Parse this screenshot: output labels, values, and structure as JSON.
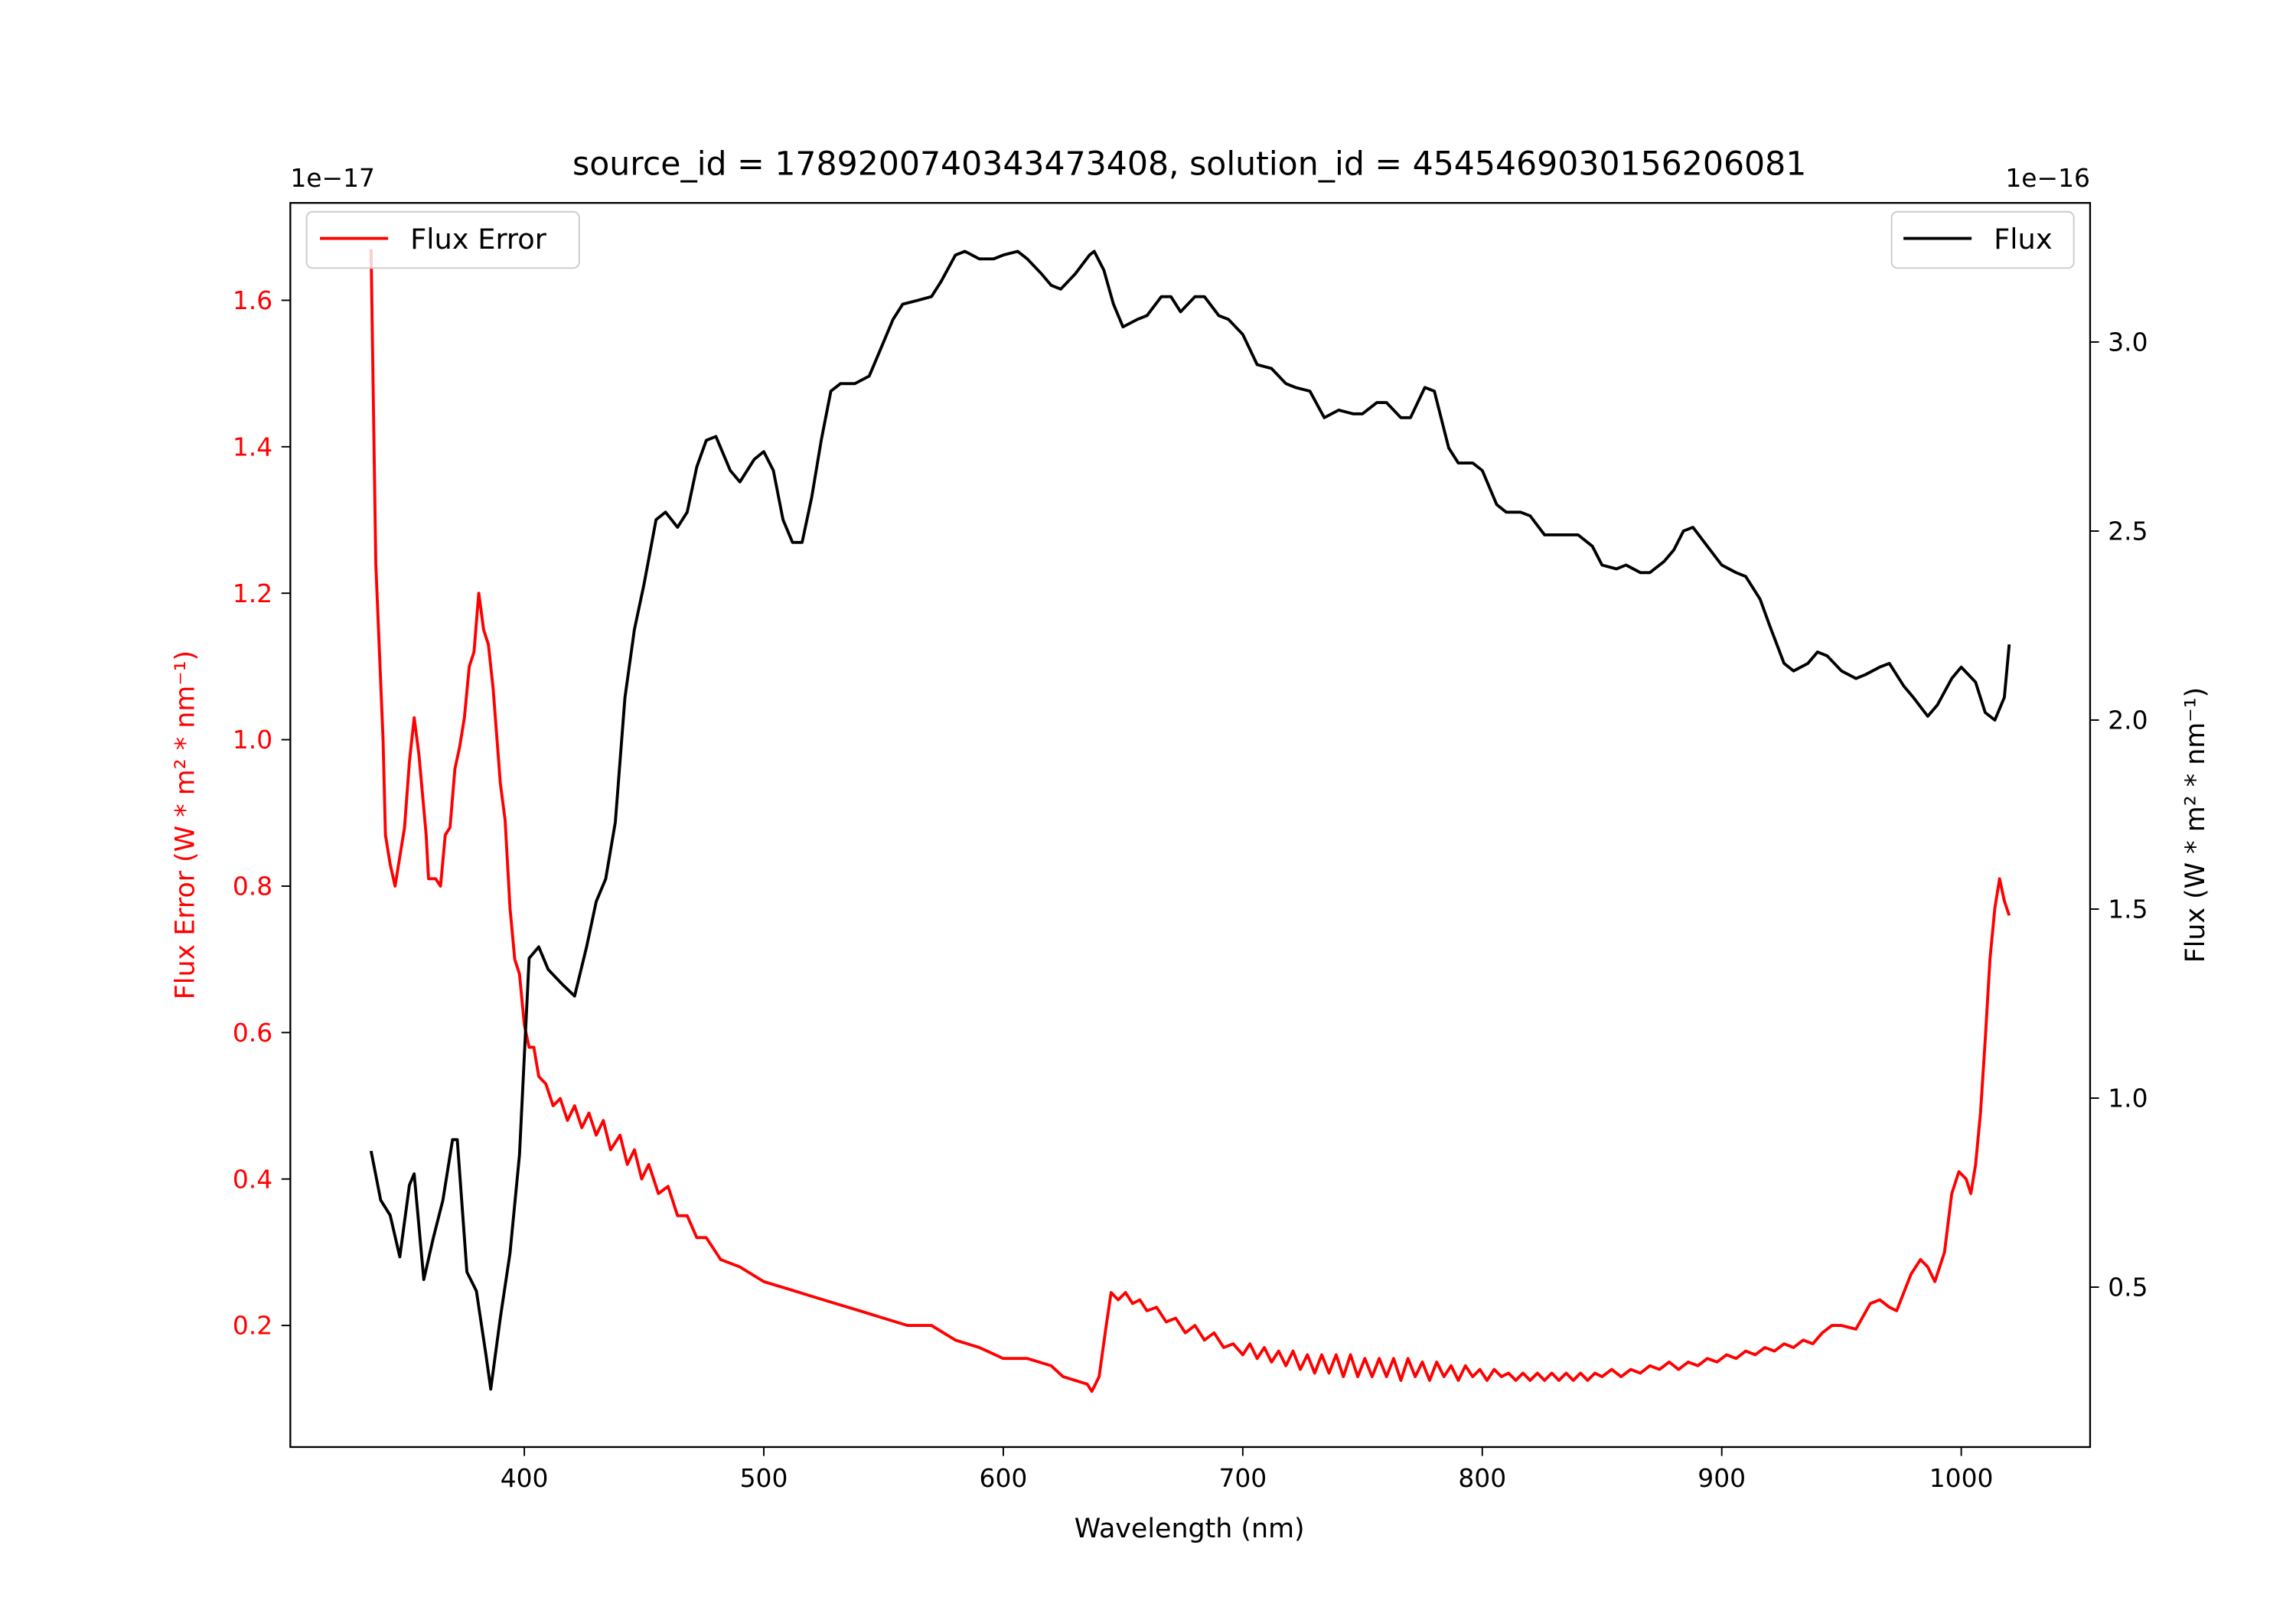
{
  "chart_data": {
    "type": "line",
    "title": "source_id = 1789200740343473408, solution_id = 4545469030156206081",
    "xlabel": "Wavelength (nm)",
    "ylabel_left": "Flux Error (W * m² * nm⁻¹)",
    "ylabel_right": "Flux (W * m² * nm⁻¹)",
    "left_offset_text": "1e−17",
    "right_offset_text": "1e−16",
    "xlim": [
      302.3,
      1053.8
    ],
    "ylim_left": [
      0.034,
      1.733
    ],
    "ylim_right": [
      0.077,
      3.368
    ],
    "xticks": [
      400,
      500,
      600,
      700,
      800,
      900,
      1000
    ],
    "xtick_labels": [
      "400",
      "500",
      "600",
      "700",
      "800",
      "900",
      "1000"
    ],
    "yticks_left": [
      0.2,
      0.4,
      0.6,
      0.8,
      1.0,
      1.2,
      1.4,
      1.6
    ],
    "ytick_labels_left": [
      "0.2",
      "0.4",
      "0.6",
      "0.8",
      "1.0",
      "1.2",
      "1.4",
      "1.6"
    ],
    "yticks_right": [
      0.5,
      1.0,
      1.5,
      2.0,
      2.5,
      3.0
    ],
    "ytick_labels_right": [
      "0.5",
      "1.0",
      "1.5",
      "2.0",
      "2.5",
      "3.0"
    ],
    "grid": false,
    "colors": {
      "flux_error": "#ff0000",
      "flux": "#000000",
      "left_axis": "#ff0000",
      "right_axis": "#000000"
    },
    "legend_left": {
      "label": "Flux Error",
      "placement": "top-left"
    },
    "legend_right": {
      "label": "Flux",
      "placement": "top-right"
    },
    "series": [
      {
        "name": "Flux Error",
        "axis": "left",
        "x": [
          336,
          338,
          341,
          342,
          344,
          346,
          348,
          350,
          352,
          354,
          356,
          359,
          360,
          363,
          365,
          367,
          369,
          371,
          373,
          375,
          377,
          379,
          381,
          383,
          385,
          387,
          390,
          392,
          394,
          396,
          398,
          400,
          402,
          404,
          406,
          409,
          412,
          415,
          418,
          421,
          424,
          427,
          430,
          433,
          436,
          440,
          443,
          446,
          449,
          452,
          456,
          460,
          464,
          468,
          472,
          476,
          482,
          490,
          500,
          510,
          520,
          530,
          540,
          550,
          560,
          570,
          580,
          590,
          600,
          610,
          620,
          625,
          630,
          635,
          637,
          640,
          643,
          645,
          648,
          651,
          654,
          657,
          660,
          664,
          668,
          672,
          676,
          680,
          684,
          688,
          692,
          696,
          700,
          703,
          706,
          709,
          712,
          715,
          718,
          721,
          724,
          727,
          730,
          733,
          736,
          739,
          742,
          745,
          748,
          751,
          754,
          757,
          760,
          763,
          766,
          769,
          772,
          775,
          778,
          781,
          784,
          787,
          790,
          793,
          796,
          799,
          802,
          805,
          808,
          811,
          814,
          817,
          820,
          823,
          826,
          829,
          832,
          835,
          838,
          841,
          844,
          847,
          850,
          854,
          858,
          862,
          866,
          870,
          874,
          878,
          882,
          886,
          890,
          894,
          898,
          902,
          906,
          910,
          914,
          918,
          922,
          926,
          930,
          934,
          938,
          942,
          946,
          950,
          956,
          962,
          966,
          970,
          973,
          979,
          983,
          986,
          989,
          993,
          996,
          999,
          1002,
          1004,
          1006,
          1008,
          1010,
          1012,
          1014,
          1016,
          1018,
          1020
        ],
        "y": [
          1.67,
          1.24,
          1.0,
          0.87,
          0.83,
          0.8,
          0.84,
          0.88,
          0.97,
          1.03,
          0.98,
          0.87,
          0.81,
          0.81,
          0.8,
          0.87,
          0.88,
          0.96,
          0.99,
          1.03,
          1.1,
          1.12,
          1.2,
          1.15,
          1.13,
          1.07,
          0.94,
          0.89,
          0.77,
          0.7,
          0.68,
          0.61,
          0.58,
          0.58,
          0.54,
          0.53,
          0.5,
          0.51,
          0.48,
          0.5,
          0.47,
          0.49,
          0.46,
          0.48,
          0.44,
          0.46,
          0.42,
          0.44,
          0.4,
          0.42,
          0.38,
          0.39,
          0.35,
          0.35,
          0.32,
          0.32,
          0.29,
          0.28,
          0.26,
          0.25,
          0.24,
          0.23,
          0.22,
          0.21,
          0.2,
          0.2,
          0.18,
          0.17,
          0.155,
          0.155,
          0.145,
          0.13,
          0.125,
          0.12,
          0.11,
          0.13,
          0.2,
          0.245,
          0.235,
          0.245,
          0.23,
          0.235,
          0.22,
          0.225,
          0.205,
          0.21,
          0.19,
          0.2,
          0.18,
          0.19,
          0.17,
          0.175,
          0.16,
          0.175,
          0.155,
          0.17,
          0.15,
          0.165,
          0.145,
          0.165,
          0.14,
          0.16,
          0.135,
          0.16,
          0.135,
          0.16,
          0.13,
          0.16,
          0.13,
          0.155,
          0.13,
          0.155,
          0.13,
          0.155,
          0.125,
          0.155,
          0.13,
          0.15,
          0.125,
          0.15,
          0.13,
          0.145,
          0.125,
          0.145,
          0.13,
          0.14,
          0.125,
          0.14,
          0.13,
          0.135,
          0.125,
          0.135,
          0.125,
          0.135,
          0.125,
          0.135,
          0.125,
          0.135,
          0.125,
          0.135,
          0.125,
          0.135,
          0.13,
          0.14,
          0.13,
          0.14,
          0.135,
          0.145,
          0.14,
          0.15,
          0.14,
          0.15,
          0.145,
          0.155,
          0.15,
          0.16,
          0.155,
          0.165,
          0.16,
          0.17,
          0.165,
          0.175,
          0.17,
          0.18,
          0.175,
          0.19,
          0.2,
          0.2,
          0.195,
          0.23,
          0.235,
          0.225,
          0.22,
          0.27,
          0.29,
          0.28,
          0.26,
          0.3,
          0.38,
          0.41,
          0.4,
          0.38,
          0.42,
          0.49,
          0.59,
          0.7,
          0.77,
          0.81,
          0.78,
          0.76
        ]
      },
      {
        "name": "Flux",
        "axis": "right",
        "x": [
          336,
          340,
          344,
          348,
          352,
          354,
          358,
          362,
          366,
          370,
          372,
          376,
          380,
          384,
          386,
          390,
          394,
          398,
          402,
          406,
          410,
          416,
          421,
          426,
          430,
          434,
          438,
          442,
          446,
          450,
          455,
          459,
          464,
          468,
          472,
          476,
          480,
          486,
          490,
          496,
          500,
          504,
          508,
          512,
          516,
          520,
          524,
          528,
          532,
          538,
          544,
          550,
          554,
          558,
          564,
          570,
          574,
          580,
          584,
          590,
          596,
          600,
          606,
          610,
          616,
          620,
          624,
          630,
          636,
          638,
          642,
          646,
          650,
          656,
          660,
          666,
          670,
          674,
          680,
          684,
          690,
          694,
          700,
          706,
          712,
          718,
          722,
          728,
          734,
          740,
          746,
          750,
          756,
          760,
          766,
          770,
          776,
          780,
          786,
          790,
          796,
          800,
          806,
          810,
          816,
          820,
          826,
          830,
          836,
          840,
          846,
          850,
          856,
          860,
          866,
          870,
          876,
          880,
          884,
          888,
          894,
          900,
          906,
          910,
          916,
          920,
          926,
          930,
          936,
          940,
          944,
          950,
          956,
          960,
          966,
          970,
          976,
          980,
          986,
          990,
          996,
          1000,
          1006,
          1010,
          1014,
          1018,
          1020
        ],
        "y": [
          0.86,
          0.73,
          0.69,
          0.58,
          0.77,
          0.8,
          0.52,
          0.63,
          0.73,
          0.89,
          0.89,
          0.54,
          0.49,
          0.32,
          0.23,
          0.42,
          0.59,
          0.85,
          1.37,
          1.4,
          1.34,
          1.3,
          1.27,
          1.4,
          1.52,
          1.58,
          1.73,
          2.06,
          2.24,
          2.36,
          2.53,
          2.55,
          2.51,
          2.55,
          2.67,
          2.74,
          2.75,
          2.66,
          2.63,
          2.69,
          2.71,
          2.66,
          2.53,
          2.47,
          2.47,
          2.59,
          2.74,
          2.87,
          2.89,
          2.89,
          2.91,
          3.0,
          3.06,
          3.1,
          3.11,
          3.12,
          3.16,
          3.23,
          3.24,
          3.22,
          3.22,
          3.23,
          3.24,
          3.22,
          3.18,
          3.15,
          3.14,
          3.18,
          3.23,
          3.24,
          3.19,
          3.1,
          3.04,
          3.06,
          3.07,
          3.12,
          3.12,
          3.08,
          3.12,
          3.12,
          3.07,
          3.06,
          3.02,
          2.94,
          2.93,
          2.89,
          2.88,
          2.87,
          2.8,
          2.82,
          2.81,
          2.81,
          2.84,
          2.84,
          2.8,
          2.8,
          2.88,
          2.87,
          2.72,
          2.68,
          2.68,
          2.66,
          2.57,
          2.55,
          2.55,
          2.54,
          2.49,
          2.49,
          2.49,
          2.49,
          2.46,
          2.41,
          2.4,
          2.41,
          2.39,
          2.39,
          2.42,
          2.45,
          2.5,
          2.51,
          2.46,
          2.41,
          2.39,
          2.38,
          2.32,
          2.25,
          2.15,
          2.13,
          2.15,
          2.18,
          2.17,
          2.13,
          2.11,
          2.12,
          2.14,
          2.15,
          2.09,
          2.06,
          2.01,
          2.04,
          2.11,
          2.14,
          2.1,
          2.02,
          2.0,
          2.06,
          2.2
        ]
      }
    ]
  }
}
